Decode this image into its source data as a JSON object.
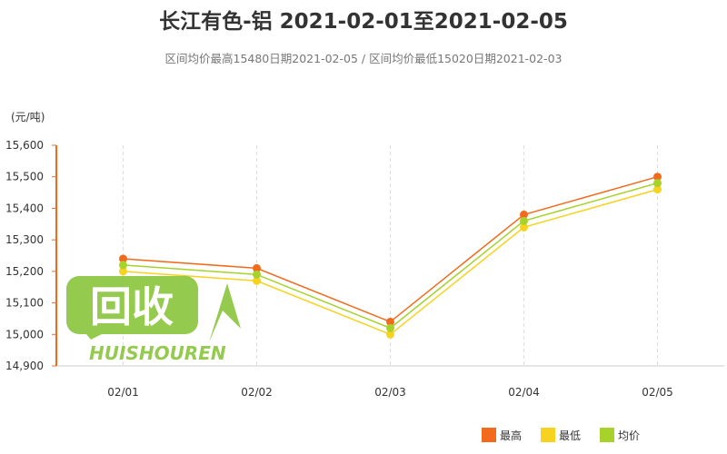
{
  "title": "长江有色-铝 2021-02-01至2021-02-05",
  "subtitle": "区间均价最高15480日期2021-02-05 / 区间均价最低15020日期2021-02-03",
  "watermark": {
    "text": "回收",
    "subtext": "HUISHOUREN"
  },
  "chart_data": {
    "type": "line",
    "title": "长江有色-铝 2021-02-01至2021-02-05",
    "ylabel": "(元/吨)",
    "categories": [
      "02/01",
      "02/02",
      "02/03",
      "02/04",
      "02/05"
    ],
    "ylim": [
      14900,
      15600
    ],
    "yticks": [
      "14,900",
      "15,000",
      "15,100",
      "15,200",
      "15,300",
      "15,400",
      "15,500",
      "15,600"
    ],
    "ytick_values": [
      14900,
      15000,
      15100,
      15200,
      15300,
      15400,
      15500,
      15600
    ],
    "grid": "vertical dashed",
    "legend_placement": "bottom",
    "series": [
      {
        "name": "最高",
        "color": "#f26b1d",
        "values": [
          15240,
          15210,
          15040,
          15380,
          15500
        ]
      },
      {
        "name": "最低",
        "color": "#f7d21e",
        "values": [
          15200,
          15170,
          15000,
          15340,
          15460
        ]
      },
      {
        "name": "均价",
        "color": "#a6d22a",
        "values": [
          15220,
          15190,
          15020,
          15360,
          15480
        ]
      }
    ]
  }
}
